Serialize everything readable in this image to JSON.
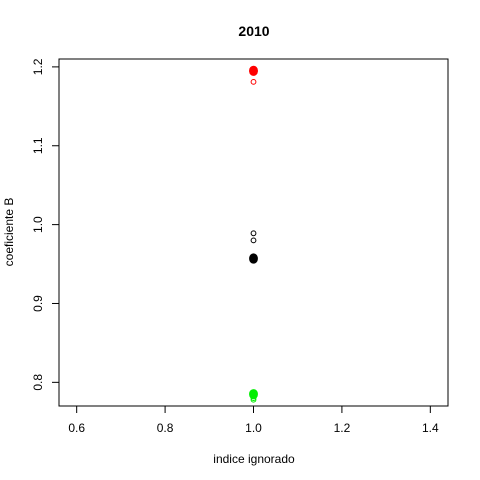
{
  "chart_data": {
    "type": "scatter",
    "title": "2010",
    "xlabel": "indice ignorado",
    "ylabel": "coeficiente B",
    "xlim": [
      0.56,
      1.44
    ],
    "ylim": [
      0.77,
      1.21
    ],
    "xticks": [
      0.6,
      0.8,
      1.0,
      1.2,
      1.4
    ],
    "xtick_labels": [
      "0.6",
      "0.8",
      "1.0",
      "1.2",
      "1.4"
    ],
    "yticks": [
      0.8,
      0.9,
      1.0,
      1.1,
      1.2
    ],
    "ytick_labels": [
      "0.8",
      "0.9",
      "1.0",
      "1.1",
      "1.2"
    ],
    "grid": false,
    "series": [
      {
        "name": "red",
        "color": "#ff0000",
        "points": [
          {
            "x": 1.0,
            "y": 1.195,
            "style": "filled"
          },
          {
            "x": 1.0,
            "y": 1.195,
            "style": "filled"
          },
          {
            "x": 1.0,
            "y": 1.196,
            "style": "filled"
          },
          {
            "x": 1.0,
            "y": 1.194,
            "style": "filled"
          },
          {
            "x": 1.0,
            "y": 1.181,
            "style": "open"
          }
        ]
      },
      {
        "name": "black",
        "color": "#000000",
        "points": [
          {
            "x": 1.0,
            "y": 0.989,
            "style": "open"
          },
          {
            "x": 1.0,
            "y": 0.98,
            "style": "open"
          },
          {
            "x": 1.0,
            "y": 0.957,
            "style": "filled"
          },
          {
            "x": 1.0,
            "y": 0.958,
            "style": "filled"
          },
          {
            "x": 1.0,
            "y": 0.956,
            "style": "filled"
          }
        ]
      },
      {
        "name": "green",
        "color": "#00ee00",
        "points": [
          {
            "x": 1.0,
            "y": 0.786,
            "style": "filled"
          },
          {
            "x": 1.0,
            "y": 0.785,
            "style": "filled"
          },
          {
            "x": 1.0,
            "y": 0.784,
            "style": "filled"
          },
          {
            "x": 1.0,
            "y": 0.78,
            "style": "open"
          },
          {
            "x": 1.0,
            "y": 0.778,
            "style": "open"
          }
        ]
      }
    ]
  }
}
